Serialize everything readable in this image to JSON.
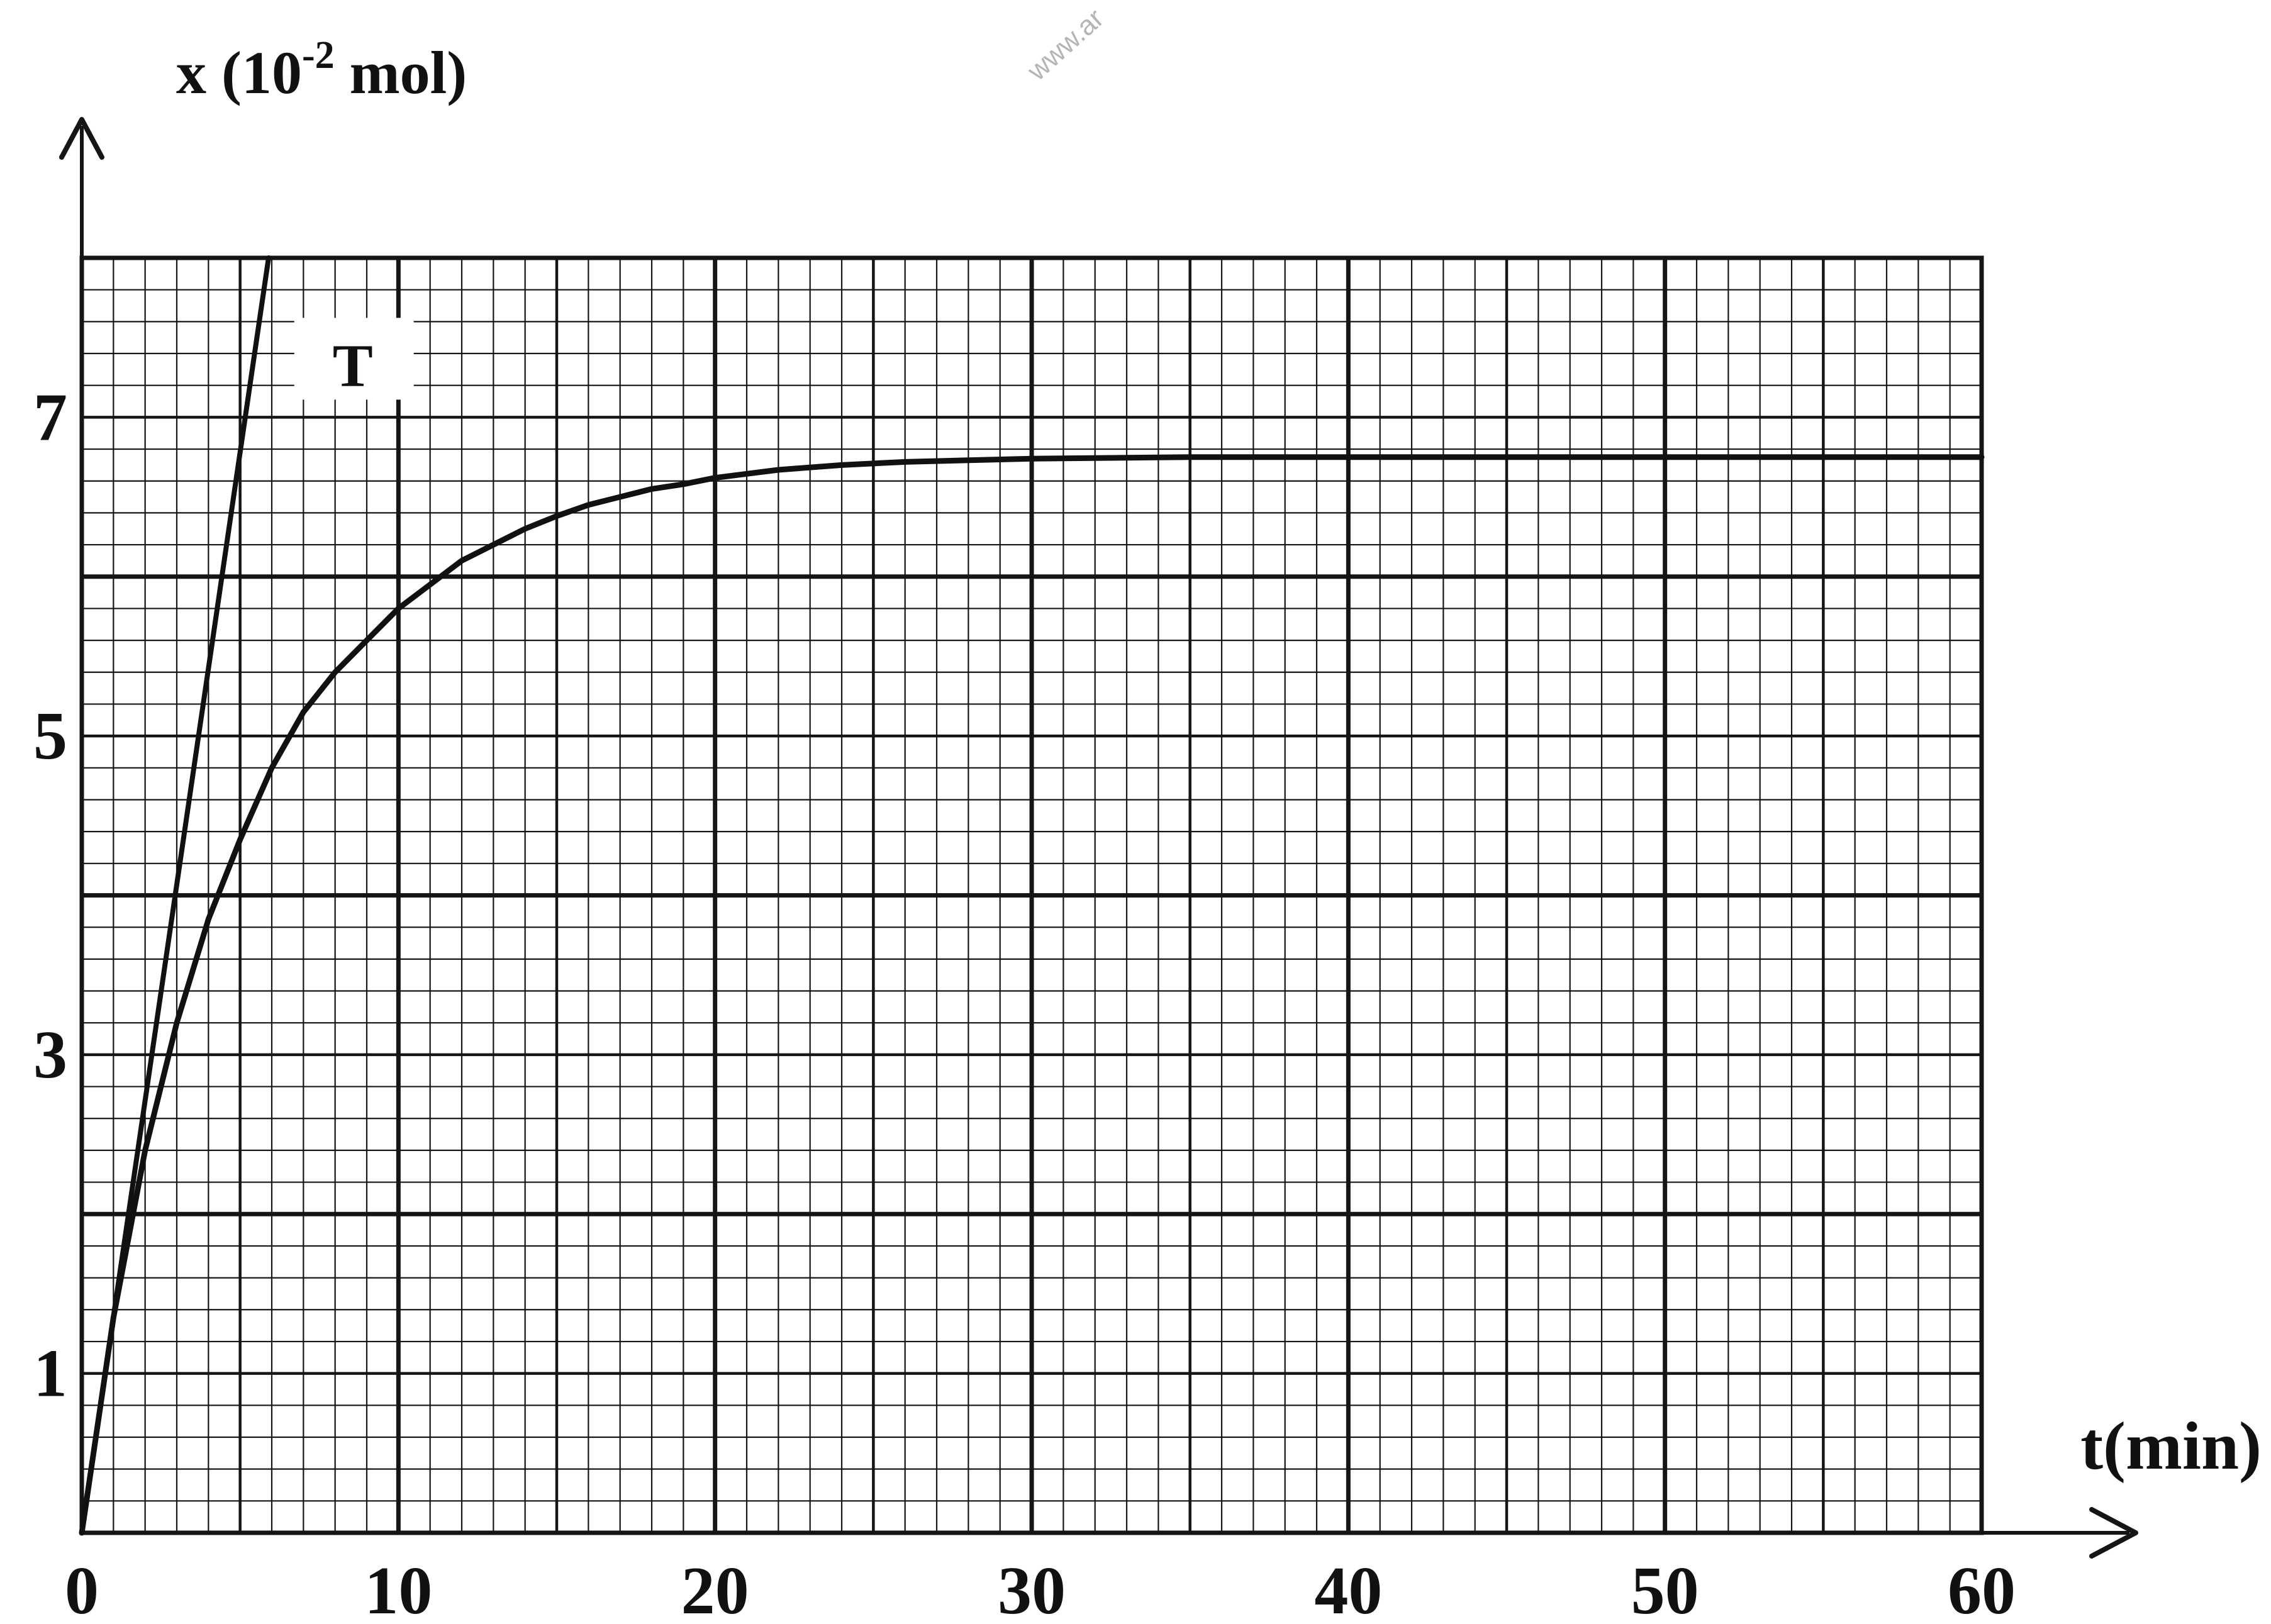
{
  "watermark": "www.ar",
  "chart_data": {
    "type": "line",
    "xlabel": "t(min)",
    "ylabel_base": "x (10",
    "ylabel_exp": "-2",
    "ylabel_unit": " mol)",
    "xlim": [
      0,
      60
    ],
    "ylim": [
      0,
      8
    ],
    "grid": true,
    "x_ticks": [
      "0",
      "10",
      "20",
      "30",
      "40",
      "50",
      "60"
    ],
    "x_tick_values": [
      0,
      10,
      20,
      30,
      40,
      50,
      60
    ],
    "y_ticks": [
      "1",
      "3",
      "5",
      "7"
    ],
    "y_tick_values": [
      1,
      3,
      5,
      7
    ],
    "annotation": "T",
    "series": [
      {
        "x": [
          0,
          1,
          2,
          3,
          4,
          5,
          6,
          7,
          8,
          9,
          10,
          11,
          12,
          13,
          14,
          15,
          16,
          17,
          18,
          19,
          20,
          22,
          24,
          26,
          28,
          30,
          35,
          40,
          45,
          50,
          55,
          60
        ],
        "y": [
          0,
          1.35,
          2.4,
          3.2,
          3.85,
          4.35,
          4.8,
          5.15,
          5.4,
          5.6,
          5.8,
          5.95,
          6.1,
          6.2,
          6.3,
          6.38,
          6.45,
          6.5,
          6.55,
          6.58,
          6.62,
          6.67,
          6.7,
          6.72,
          6.73,
          6.74,
          6.75,
          6.75,
          6.75,
          6.75,
          6.75,
          6.75
        ]
      },
      {
        "x": [
          0,
          5.9
        ],
        "y": [
          0,
          8
        ]
      }
    ]
  }
}
